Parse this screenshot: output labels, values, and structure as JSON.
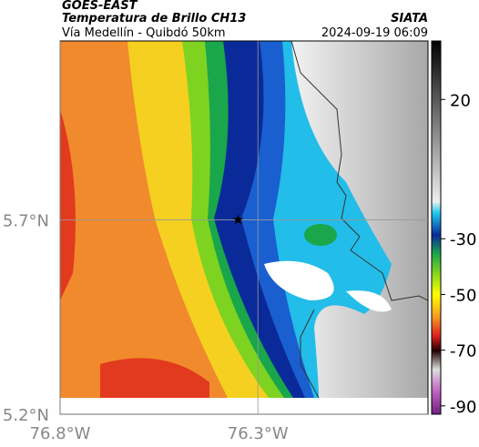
{
  "header": {
    "satellite": "GOES-EAST",
    "product": "Temperatura de Brillo CH13",
    "route": "Vía Medellín - Quibdó 50km",
    "source": "SIATA",
    "timestamp": "2024-09-19 06:09"
  },
  "map": {
    "xlim": [
      -76.8,
      -75.87
    ],
    "ylim": [
      5.2,
      6.16
    ],
    "xticks": [
      {
        "value": -76.8,
        "label": "76.8°W"
      },
      {
        "value": -76.3,
        "label": "76.3°W"
      }
    ],
    "yticks": [
      {
        "value": 5.7,
        "label": "5.7°N"
      },
      {
        "value": 5.2,
        "label": "5.2°N"
      }
    ],
    "grid": true,
    "marker": {
      "lon": -76.35,
      "lat": 5.7
    }
  },
  "colorbar": {
    "lim": [
      -93,
      41
    ],
    "ticks": [
      20,
      -30,
      -50,
      -70,
      -90
    ]
  }
}
